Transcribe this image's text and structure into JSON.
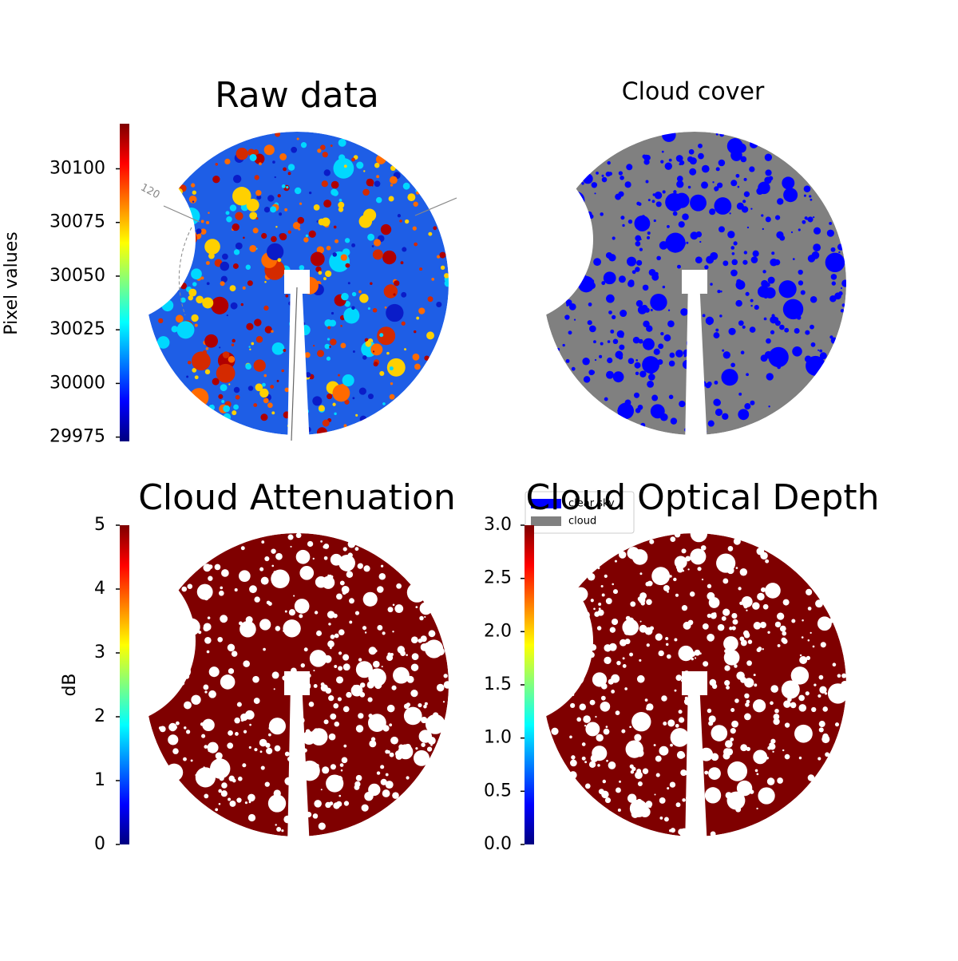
{
  "chart_data": [
    {
      "type": "image",
      "title": "Raw data",
      "ylabel": "Pixel values",
      "colormap": "jet",
      "ylim": [
        29973,
        30121
      ],
      "yticks": [
        29975,
        30000,
        30025,
        30050,
        30075,
        30100
      ],
      "annotations": [
        "120"
      ]
    },
    {
      "type": "image",
      "title": "Cloud cover",
      "series": [
        {
          "name": "clear sky",
          "color": "#0000ff"
        },
        {
          "name": "cloud",
          "color": "#808080"
        }
      ]
    },
    {
      "type": "image",
      "title": "Cloud Attenuation",
      "ylabel": "dB",
      "colormap": "jet",
      "ylim": [
        0,
        5
      ],
      "yticks": [
        0,
        1,
        2,
        3,
        4,
        5
      ]
    },
    {
      "type": "image",
      "title": "Cloud Optical Depth",
      "colormap": "jet",
      "ylim": [
        0,
        3
      ],
      "yticks": [
        {
          "value": 0,
          "label": "0.0"
        },
        0.5,
        {
          "value": 1,
          "label": "1.0"
        },
        1.5,
        {
          "value": 2,
          "label": "2.0"
        },
        2.5,
        {
          "value": 3,
          "label": "3.0"
        }
      ]
    }
  ]
}
